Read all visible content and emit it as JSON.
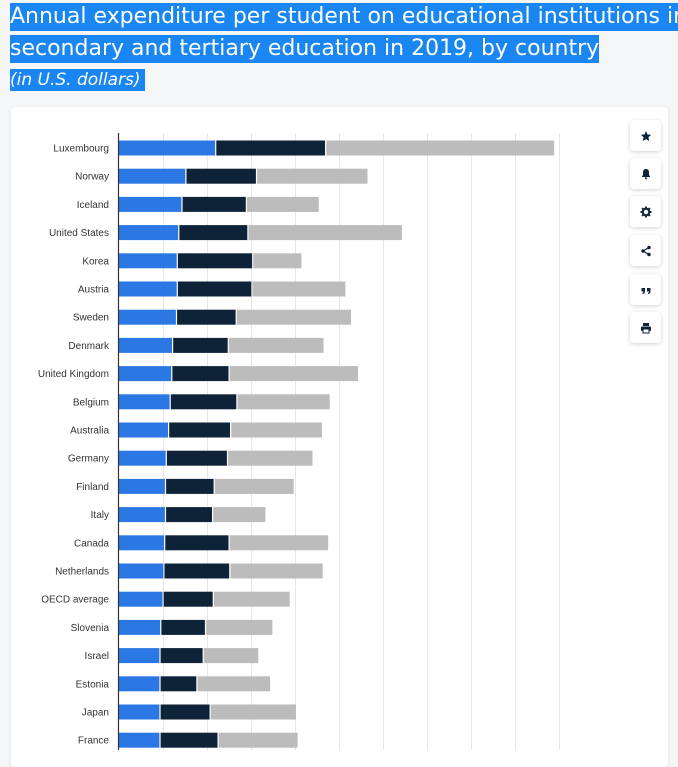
{
  "header": {
    "title_line1": "Annual expenditure per student on educational institutions in",
    "title_line2": "secondary and tertiary education in 2019, by country",
    "subtitle": "(in U.S. dollars)"
  },
  "toolbar": [
    {
      "icon": "star-icon"
    },
    {
      "icon": "bell-icon"
    },
    {
      "icon": "gear-icon"
    },
    {
      "icon": "share-icon"
    },
    {
      "icon": "quote-icon"
    },
    {
      "icon": "print-icon"
    }
  ],
  "colors": {
    "series1": "#2b78e4",
    "series2": "#0e2238",
    "series3": "#bcbcbc",
    "highlight": "#1a86f2"
  },
  "chart_data": {
    "type": "bar",
    "orientation": "horizontal",
    "stacked": true,
    "xlim": [
      0,
      56000
    ],
    "grid": true,
    "categories": [
      "Luxembourg",
      "Norway",
      "Iceland",
      "United States",
      "Korea",
      "Austria",
      "Sweden",
      "Denmark",
      "United Kingdom",
      "Belgium",
      "Australia",
      "Germany",
      "Finland",
      "Italy",
      "Canada",
      "Netherlands",
      "OECD average",
      "Slovenia",
      "Israel",
      "Estonia",
      "Japan",
      "France"
    ],
    "series": [
      {
        "values": [
          12400,
          8600,
          8100,
          7700,
          7500,
          7500,
          7400,
          6900,
          6800,
          6600,
          6400,
          6100,
          6000,
          6000,
          5900,
          5800,
          5700,
          5400,
          5300,
          5300,
          5300,
          5300
        ]
      },
      {
        "values": [
          14000,
          9000,
          8200,
          8800,
          9600,
          9500,
          7600,
          7100,
          7300,
          8500,
          7900,
          7800,
          6200,
          6000,
          8200,
          8400,
          6400,
          5700,
          5500,
          4700,
          6400,
          7400
        ]
      },
      {
        "values": [
          29200,
          14200,
          9300,
          19700,
          6300,
          12000,
          14700,
          12200,
          16500,
          11900,
          11700,
          10900,
          10200,
          6800,
          12700,
          11900,
          9800,
          8600,
          7100,
          9400,
          11000,
          10200
        ]
      }
    ]
  }
}
